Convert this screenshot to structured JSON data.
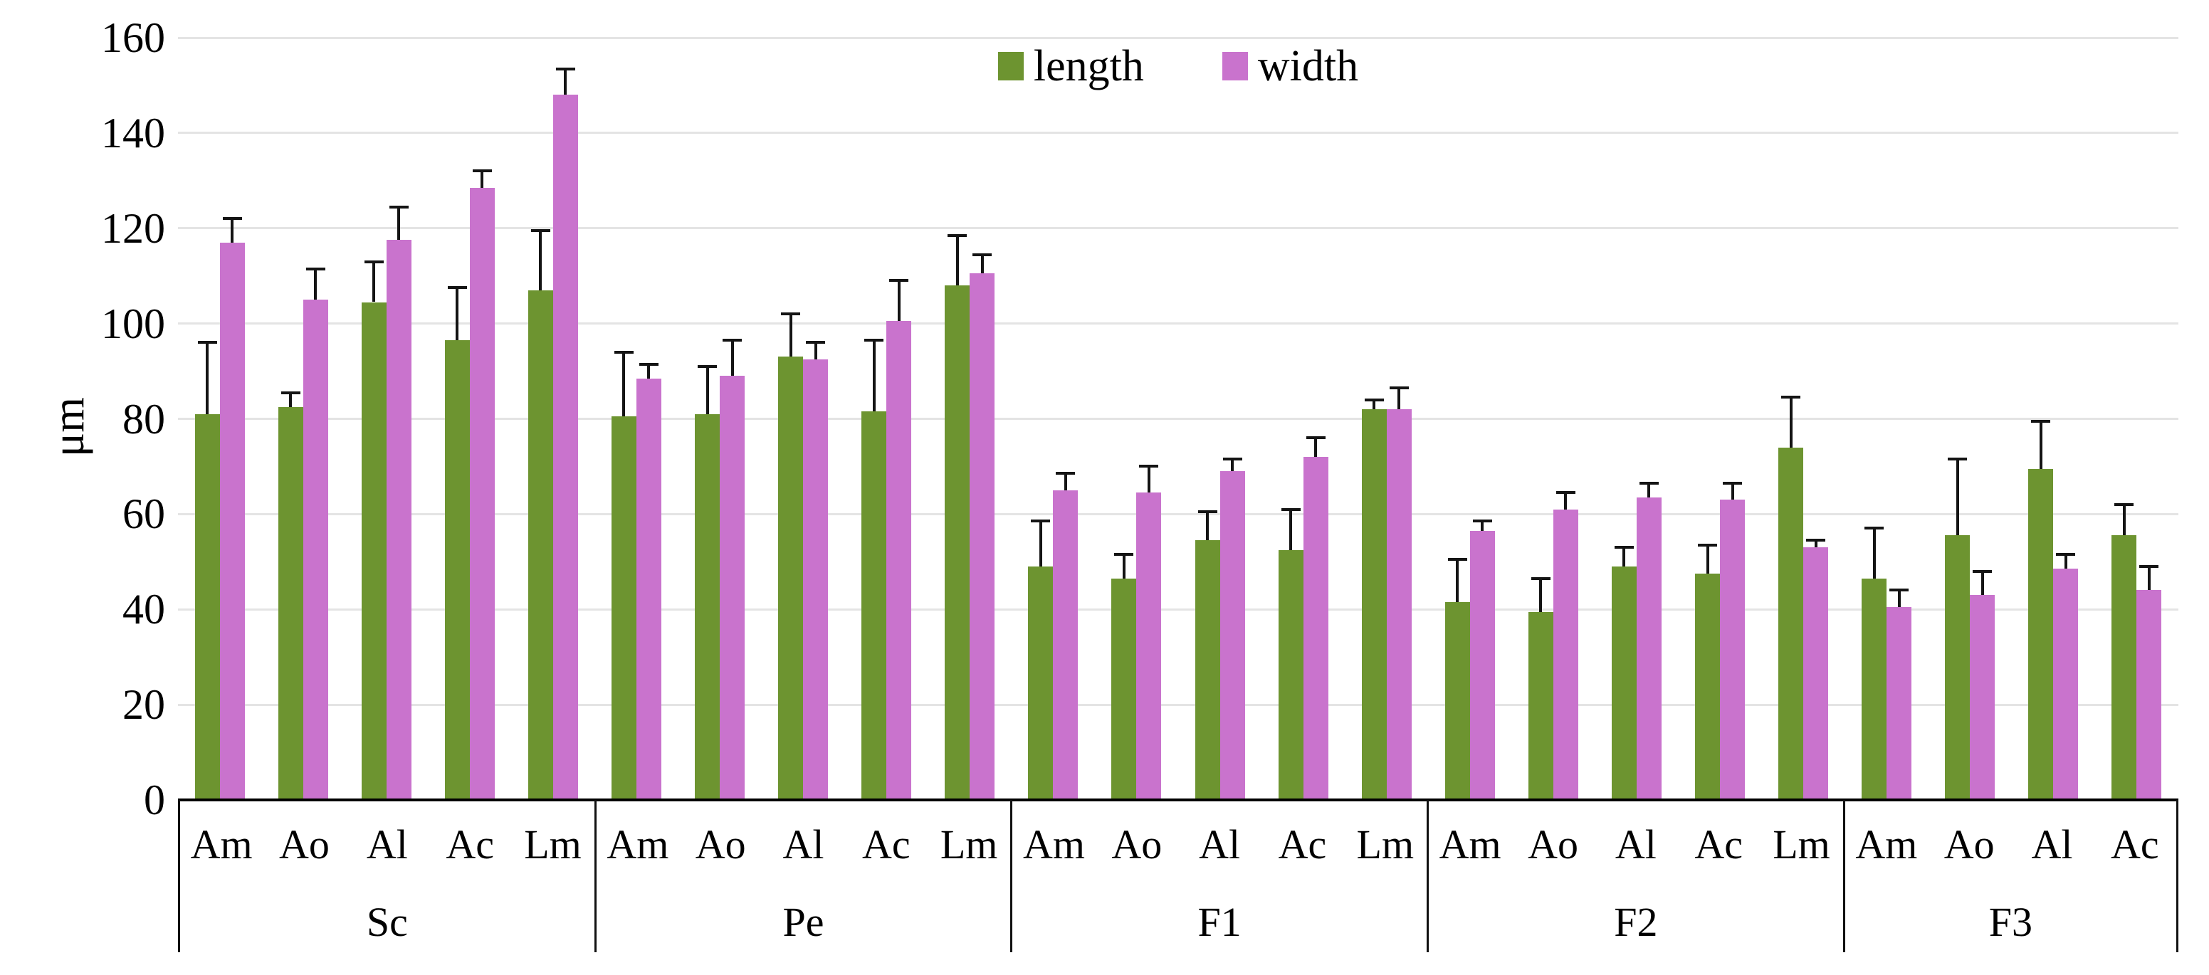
{
  "chart_data": {
    "type": "bar",
    "title": "",
    "ylabel": "μm",
    "ylim": [
      0,
      160
    ],
    "yticks": [
      0,
      20,
      40,
      60,
      80,
      100,
      120,
      140,
      160
    ],
    "grid": true,
    "legend_position": "top-center",
    "error_bars": "upper",
    "colors": {
      "length": "#6d9430",
      "width": "#c973cd",
      "gridline": "#e4e4e4",
      "axis": "#000000"
    },
    "groups": [
      {
        "label": "Sc",
        "categories": [
          "Am",
          "Ao",
          "Al",
          "Ac",
          "Lm"
        ]
      },
      {
        "label": "Pe",
        "categories": [
          "Am",
          "Ao",
          "Al",
          "Ac",
          "Lm"
        ]
      },
      {
        "label": "F1",
        "categories": [
          "Am",
          "Ao",
          "Al",
          "Ac",
          "Lm"
        ]
      },
      {
        "label": "F2",
        "categories": [
          "Am",
          "Ao",
          "Al",
          "Ac",
          "Lm"
        ]
      },
      {
        "label": "F3",
        "categories": [
          "Am",
          "Ao",
          "Al",
          "Ac"
        ]
      }
    ],
    "series": [
      {
        "name": "length",
        "color": "#6d9430",
        "values": [
          [
            81,
            82.5,
            104.5,
            96.5,
            107
          ],
          [
            80.5,
            81,
            93,
            81.5,
            108
          ],
          [
            49,
            46.5,
            54.5,
            52.5,
            82
          ],
          [
            41.5,
            39.5,
            49,
            47.5,
            74
          ],
          [
            46.5,
            55.5,
            69.5,
            55.5
          ]
        ],
        "errors_up": [
          [
            15,
            3,
            8.5,
            11,
            12.5
          ],
          [
            13.5,
            10,
            9,
            15,
            10.5
          ],
          [
            9.5,
            5,
            6,
            8.5,
            2
          ],
          [
            9,
            7,
            4,
            6,
            10.5
          ],
          [
            10.5,
            16,
            10,
            6.5
          ]
        ]
      },
      {
        "name": "width",
        "color": "#c973cd",
        "values": [
          [
            117,
            105,
            117.5,
            128.5,
            148
          ],
          [
            88.5,
            89,
            92.5,
            100.5,
            110.5
          ],
          [
            65,
            64.5,
            69,
            72,
            82
          ],
          [
            56.5,
            61,
            63.5,
            63,
            53
          ],
          [
            40.5,
            43,
            48.5,
            44
          ]
        ],
        "errors_up": [
          [
            5,
            6.5,
            7,
            3.5,
            5.5
          ],
          [
            3,
            7.5,
            3.5,
            8.5,
            4
          ],
          [
            3.5,
            5.5,
            2.5,
            4,
            4.5
          ],
          [
            2,
            3.5,
            3,
            3.5,
            1.5
          ],
          [
            3.5,
            5,
            3,
            5
          ]
        ]
      }
    ]
  }
}
